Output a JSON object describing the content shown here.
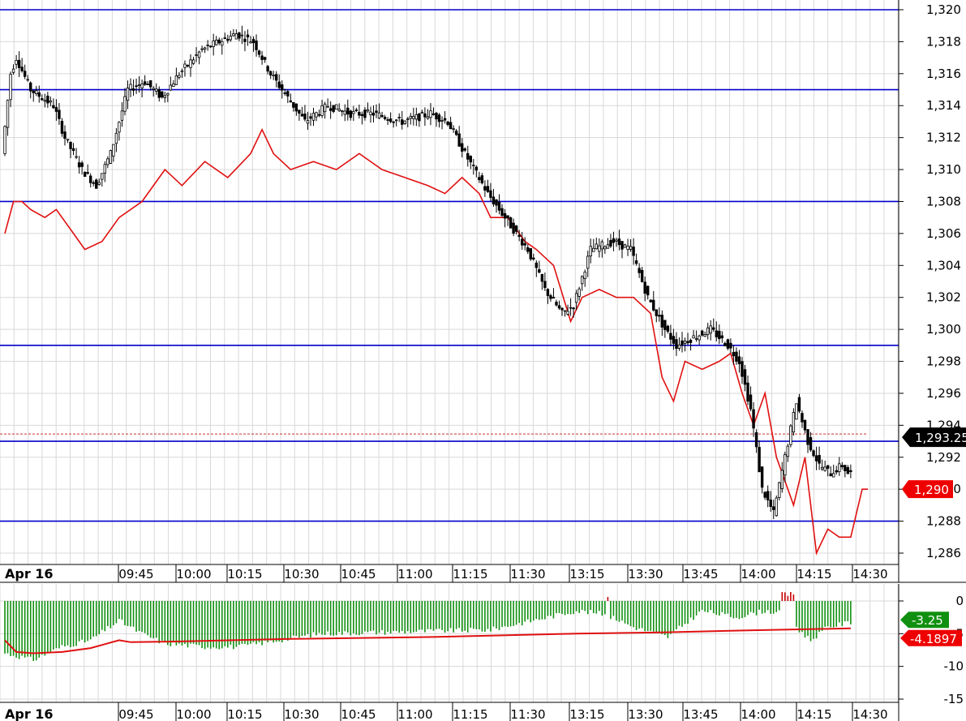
{
  "chart_data": [
    {
      "type": "candlestick",
      "panel": "price",
      "ylim": [
        1285,
        1321
      ],
      "y_ticks": [
        "1,320",
        "1,318",
        "1,316",
        "1,314",
        "1,312",
        "1,310",
        "1,308",
        "1,306",
        "1,304",
        "1,302",
        "1,300",
        "1,298",
        "1,296",
        "1,294",
        "1,292",
        "1,290",
        "1,288",
        "1,286"
      ],
      "y_tick_values": [
        1320,
        1318,
        1316,
        1314,
        1312,
        1310,
        1308,
        1306,
        1304,
        1302,
        1300,
        1298,
        1296,
        1294,
        1292,
        1290,
        1288,
        1286
      ],
      "x_date_label": "Apr 16",
      "x_ticks": [
        "09:45",
        "10:00",
        "10:15",
        "10:30",
        "10:45",
        "11:00",
        "11:15",
        "11:30",
        "13:15",
        "13:30",
        "13:45",
        "14:00",
        "14:15",
        "14:30"
      ],
      "grid": true,
      "horizontal_levels": [
        1320,
        1315,
        1308,
        1299,
        1293,
        1288
      ],
      "level_color": "#0000cc",
      "last_price_label": "1,293.25",
      "last_price_value": 1293.25,
      "red_marker_label": "1,290",
      "red_marker_value": 1290,
      "price_anchors": [
        [
          0,
          1311
        ],
        [
          3,
          1316
        ],
        [
          5,
          1317
        ],
        [
          10,
          1315
        ],
        [
          18,
          1314
        ],
        [
          22,
          1312
        ],
        [
          28,
          1310
        ],
        [
          33,
          1309
        ],
        [
          38,
          1311
        ],
        [
          44,
          1315
        ],
        [
          50,
          1315.5
        ],
        [
          56,
          1314.5
        ],
        [
          62,
          1316
        ],
        [
          70,
          1317.5
        ],
        [
          76,
          1318
        ],
        [
          82,
          1318.5
        ],
        [
          88,
          1318
        ],
        [
          94,
          1316
        ],
        [
          100,
          1314.5
        ],
        [
          106,
          1313
        ],
        [
          114,
          1314
        ],
        [
          122,
          1313.5
        ],
        [
          130,
          1313.5
        ],
        [
          140,
          1313
        ],
        [
          150,
          1313.5
        ],
        [
          156,
          1313
        ],
        [
          162,
          1311
        ],
        [
          170,
          1308.5
        ],
        [
          178,
          1306.5
        ],
        [
          184,
          1305
        ],
        [
          190,
          1302.5
        ],
        [
          196,
          1301
        ],
        [
          200,
          1301.5
        ],
        [
          206,
          1305
        ],
        [
          214,
          1305.5
        ],
        [
          220,
          1305
        ],
        [
          226,
          1302
        ],
        [
          232,
          1300
        ],
        [
          236,
          1299
        ],
        [
          242,
          1299.5
        ],
        [
          248,
          1300
        ],
        [
          254,
          1299
        ],
        [
          258,
          1298
        ],
        [
          262,
          1295
        ],
        [
          266,
          1290
        ],
        [
          270,
          1288.5
        ],
        [
          274,
          1292
        ],
        [
          278,
          1295.5
        ],
        [
          282,
          1293
        ],
        [
          286,
          1291.5
        ],
        [
          290,
          1291
        ],
        [
          294,
          1291.5
        ],
        [
          296,
          1291
        ]
      ],
      "red_line": [
        [
          0,
          1306
        ],
        [
          3,
          1308
        ],
        [
          6,
          1308
        ],
        [
          9,
          1307.5
        ],
        [
          14,
          1307
        ],
        [
          18,
          1307.5
        ],
        [
          24,
          1306
        ],
        [
          28,
          1305
        ],
        [
          34,
          1305.5
        ],
        [
          40,
          1307
        ],
        [
          48,
          1308
        ],
        [
          56,
          1310
        ],
        [
          62,
          1309
        ],
        [
          70,
          1310.5
        ],
        [
          78,
          1309.5
        ],
        [
          86,
          1311
        ],
        [
          90,
          1312.5
        ],
        [
          94,
          1311
        ],
        [
          100,
          1310
        ],
        [
          108,
          1310.5
        ],
        [
          116,
          1310
        ],
        [
          124,
          1311
        ],
        [
          132,
          1310
        ],
        [
          140,
          1309.5
        ],
        [
          148,
          1309
        ],
        [
          154,
          1308.5
        ],
        [
          160,
          1309.5
        ],
        [
          166,
          1308.5
        ],
        [
          170,
          1307
        ],
        [
          176,
          1307
        ],
        [
          182,
          1305.5
        ],
        [
          186,
          1305
        ],
        [
          192,
          1304
        ],
        [
          198,
          1300.5
        ],
        [
          202,
          1302
        ],
        [
          208,
          1302.5
        ],
        [
          214,
          1302
        ],
        [
          220,
          1302
        ],
        [
          226,
          1301
        ],
        [
          230,
          1297
        ],
        [
          234,
          1295.5
        ],
        [
          238,
          1298
        ],
        [
          244,
          1297.5
        ],
        [
          250,
          1298
        ],
        [
          254,
          1298.5
        ],
        [
          258,
          1296
        ],
        [
          262,
          1294
        ],
        [
          266,
          1296
        ],
        [
          270,
          1292
        ],
        [
          274,
          1290
        ],
        [
          276,
          1289
        ],
        [
          280,
          1292
        ],
        [
          284,
          1286
        ],
        [
          288,
          1287.5
        ],
        [
          292,
          1287
        ],
        [
          296,
          1287
        ],
        [
          300,
          1290
        ],
        [
          302,
          1290
        ]
      ]
    },
    {
      "type": "histogram",
      "panel": "oscillator",
      "ylim": [
        -16,
        2
      ],
      "y_ticks": [
        "0",
        "-5",
        "-10",
        "-15"
      ],
      "y_tick_values": [
        0,
        -5,
        -10,
        -15
      ],
      "x_date_label": "Apr 16",
      "x_ticks": [
        "09:45",
        "10:00",
        "10:15",
        "10:30",
        "10:45",
        "11:00",
        "11:15",
        "11:30",
        "13:15",
        "13:30",
        "13:45",
        "14:00",
        "14:15",
        "14:30"
      ],
      "grid": true,
      "histogram_label": "-3.25",
      "histogram_value": -3.25,
      "signal_label": "-4.1897",
      "signal_value": -4.1897,
      "bar_colors": {
        "negative": "#109010",
        "positive": "#cc0000"
      },
      "signal_color": "#e01010"
    }
  ]
}
